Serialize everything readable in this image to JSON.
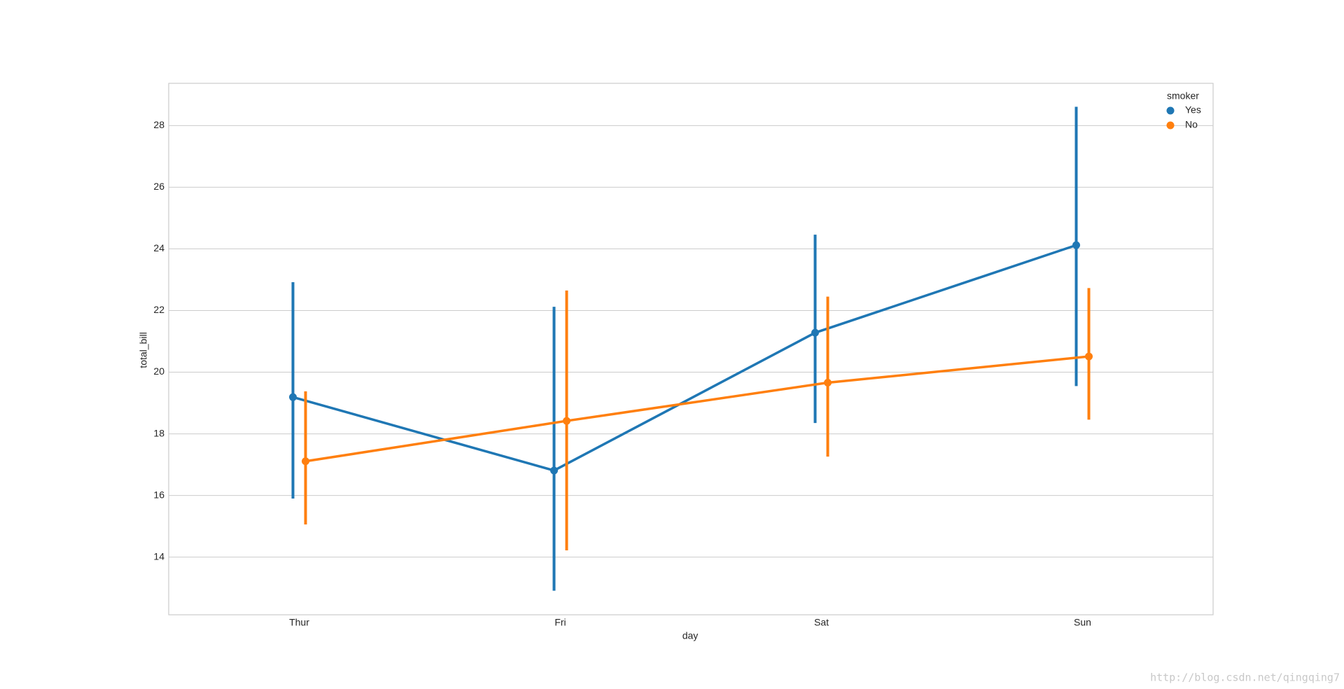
{
  "chart_data": {
    "type": "pointplot",
    "xlabel": "day",
    "ylabel": "total_bill",
    "categories": [
      "Thur",
      "Fri",
      "Sat",
      "Sun"
    ],
    "series": [
      {
        "name": "Yes",
        "color": "#1f77b4",
        "values": [
          19.19,
          16.81,
          21.28,
          24.12
        ],
        "ci_low": [
          15.9,
          12.91,
          18.35,
          19.55
        ],
        "ci_high": [
          22.92,
          22.12,
          24.46,
          28.61
        ]
      },
      {
        "name": "No",
        "color": "#ff7f0e",
        "values": [
          17.11,
          18.42,
          19.66,
          20.51
        ],
        "ci_low": [
          15.06,
          14.22,
          17.26,
          18.46
        ],
        "ci_high": [
          19.38,
          22.65,
          22.45,
          22.73
        ]
      }
    ],
    "legend_title": "smoker",
    "legend": "upper right",
    "ylim": [
      12.13,
      29.37
    ],
    "yticks": [
      14,
      16,
      18,
      20,
      22,
      24,
      26,
      28
    ],
    "grid": true,
    "watermark": "http://blog.csdn.net/qingqing7"
  }
}
